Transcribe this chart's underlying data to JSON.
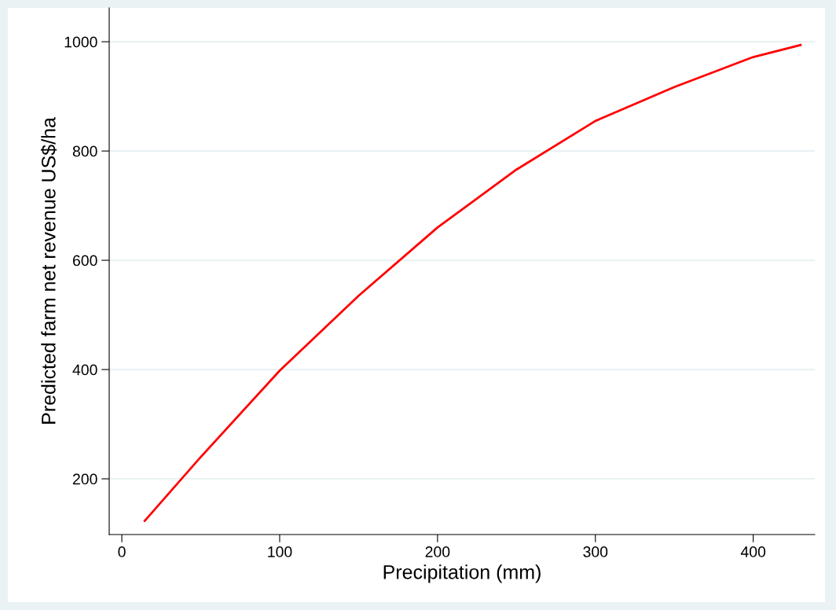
{
  "chart_data": {
    "type": "line",
    "xlabel": "Precipitation (mm)",
    "ylabel": "Predicted farm net revenue US$/ha",
    "x": [
      14.5,
      50,
      100,
      150,
      200,
      250,
      300,
      350,
      400,
      430
    ],
    "series": [
      {
        "color": "#ff0000",
        "values": [
          123,
          240,
          398,
          535,
          660,
          766,
          855,
          917,
          972,
          994
        ]
      }
    ],
    "xlim": [
      -8,
      439
    ],
    "ylim": [
      98,
      1062
    ],
    "xticks": [
      0,
      100,
      200,
      300,
      400
    ],
    "yticks": [
      200,
      400,
      600,
      800,
      1000
    ],
    "grid": "y",
    "marker": "none",
    "line_style": "solid",
    "legend": false
  }
}
